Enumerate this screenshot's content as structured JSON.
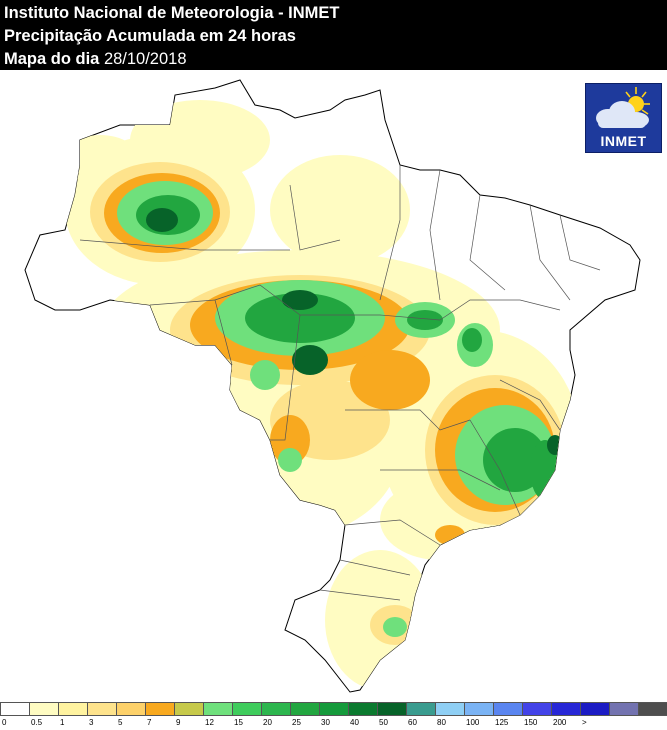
{
  "header": {
    "title": "Instituto Nacional de Meteorologia - INMET",
    "subtitle": "Precipitação Acumulada em 24 horas",
    "date_prefix": "Mapa do dia",
    "date_value": "28/10/2018"
  },
  "logo": {
    "text": "INMET",
    "icon": "sun-cloud-icon"
  },
  "legend": {
    "colors": [
      "#ffffff",
      "#fffcc2",
      "#fff3a0",
      "#fee38c",
      "#fdd16a",
      "#f8a91f",
      "#c6c94a",
      "#6fe07c",
      "#3fcc5c",
      "#2db64e",
      "#22a640",
      "#159a3b",
      "#0b7a2f",
      "#076329",
      "#3a9c8f",
      "#8fcff4",
      "#7ab3f4",
      "#5a85f0",
      "#4343e8",
      "#2727d6",
      "#1c1cc4",
      "#7373b0",
      "#4e4e4e"
    ],
    "ticks": [
      "0",
      "0.5",
      "1",
      "3",
      "5",
      "7",
      "9",
      "12",
      "15",
      "20",
      "25",
      "30",
      "40",
      "50",
      "60",
      "80",
      "100",
      "125",
      "150",
      "200",
      ">"
    ]
  }
}
